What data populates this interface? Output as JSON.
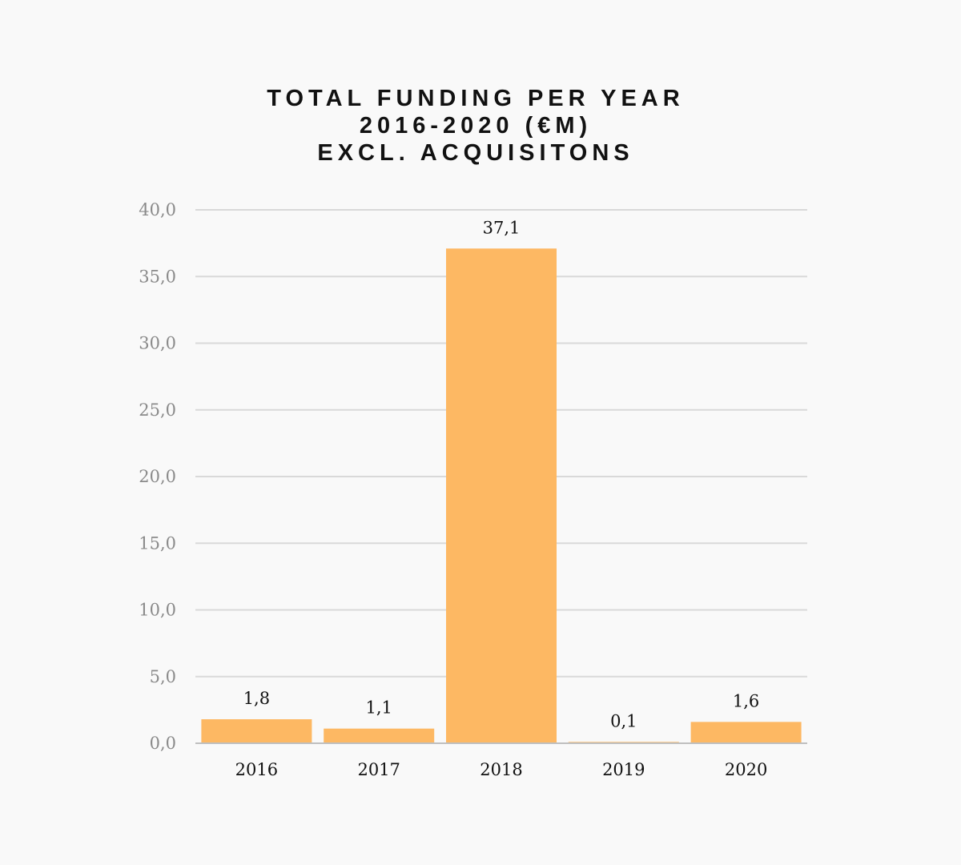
{
  "chart_data": {
    "type": "bar",
    "title": [
      "TOTAL FUNDING PER YEAR",
      "2016-2020 (€M)",
      "EXCL. ACQUISITONS"
    ],
    "categories": [
      "2016",
      "2017",
      "2018",
      "2019",
      "2020"
    ],
    "values": [
      1.8,
      1.1,
      37.1,
      0.1,
      1.6
    ],
    "data_labels": [
      "1,8",
      "1,1",
      "37,1",
      "0,1",
      "1,6"
    ],
    "xlabel": "",
    "ylabel": "",
    "ylim": [
      0,
      40
    ],
    "yticks": [
      0,
      5,
      10,
      15,
      20,
      25,
      30,
      35,
      40
    ],
    "ytick_labels": [
      "0,0",
      "5,0",
      "10,0",
      "15,0",
      "20,0",
      "25,0",
      "30,0",
      "35,0",
      "40,0"
    ],
    "grid": true,
    "legend": "none",
    "bar_color": "#fdb863",
    "grid_color": "#d9d9d9",
    "axis_color": "#bfbfbf"
  }
}
